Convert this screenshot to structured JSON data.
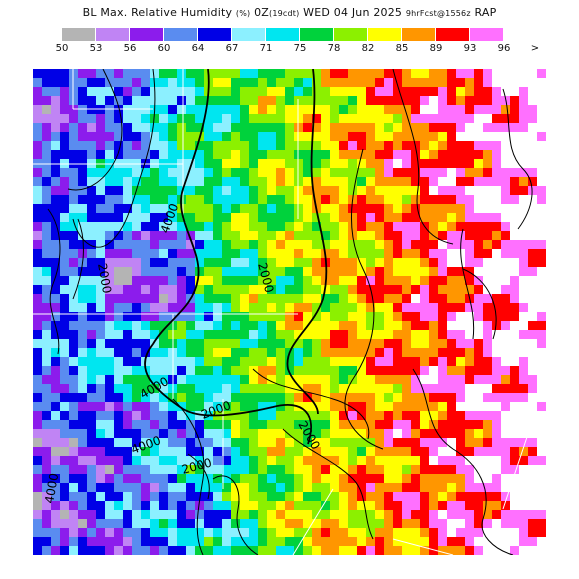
{
  "title": {
    "main": "BL Max. Relative Humidity",
    "units": "(%)",
    "init": "0Z",
    "tz": "(19cdt)",
    "date": "WED 04 Jun 2025",
    "fcst": "9hrFcst@1556z",
    "model": "RAP"
  },
  "legend": {
    "colors": [
      "#b4b4b4",
      "#c084f4",
      "#8c1cec",
      "#5a8cf0",
      "#0000e6",
      "#8cf0ff",
      "#00e6f0",
      "#00d23c",
      "#8cf000",
      "#ffff00",
      "#ff9600",
      "#ff0000",
      "#ff70ff"
    ],
    "labels": [
      "50",
      "53",
      "56",
      "60",
      "64",
      "67",
      "71",
      "75",
      "78",
      "82",
      "85",
      "89",
      "93",
      "96"
    ],
    "arrow": ">"
  },
  "contour_labels": [
    "4000",
    "2000",
    "2000",
    "4000",
    "2000",
    "4000",
    "2000",
    "4000",
    "2000"
  ],
  "colors": {
    "saturated": "#ffffff",
    "contour": "#000000",
    "border": "#ffffff"
  }
}
